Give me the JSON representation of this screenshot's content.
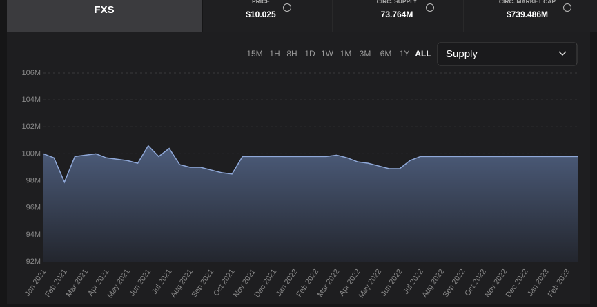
{
  "header": {
    "token": "FXS",
    "stats": [
      {
        "label": "PRICE",
        "value": "$10.025"
      },
      {
        "label": "CIRC. SUPPLY",
        "value": "73.764M"
      },
      {
        "label": "CIRC. MARKET CAP",
        "value": "$739.486M"
      }
    ]
  },
  "controls": {
    "time_ranges": [
      "15M",
      "1H",
      "8H",
      "1D",
      "1W",
      "1M",
      "3M",
      "6M",
      "1Y",
      "ALL"
    ],
    "selected_range": "ALL",
    "metric": "Supply"
  },
  "chart_data": {
    "type": "area",
    "color": "#8fa8d8",
    "categories": [
      "Jan 2021",
      null,
      "Feb 2021",
      null,
      "Mar 2021",
      null,
      "Apr 2021",
      null,
      "May 2021",
      null,
      "Jun 2021",
      null,
      "Jul 2021",
      null,
      "Aug 2021",
      null,
      "Sep 2021",
      null,
      "Oct 2021",
      null,
      "Nov 2021",
      null,
      "Dec 2021",
      null,
      "Jan 2022",
      null,
      "Feb 2022",
      null,
      "Mar 2022",
      null,
      "Apr 2022",
      null,
      "May 2022",
      null,
      "Jun 2022",
      null,
      "Jul 2022",
      null,
      "Aug 2022",
      null,
      "Sep 2022",
      null,
      "Oct 2022",
      null,
      "Nov 2022",
      null,
      "Dec 2022",
      null,
      "Jan 2023",
      null,
      "Feb 2023",
      null
    ],
    "values": [
      100.0,
      99.7,
      97.9,
      99.8,
      99.9,
      100.0,
      99.7,
      99.6,
      99.5,
      99.3,
      100.6,
      99.8,
      100.4,
      99.2,
      99.0,
      99.0,
      98.8,
      98.6,
      98.5,
      99.8,
      99.8,
      99.8,
      99.8,
      99.8,
      99.8,
      99.8,
      99.8,
      99.8,
      99.9,
      99.7,
      99.4,
      99.3,
      99.1,
      98.9,
      98.9,
      99.5,
      99.8,
      99.8,
      99.8,
      99.8,
      99.8,
      99.8,
      99.8,
      99.8,
      99.8,
      99.8,
      99.8,
      99.8,
      99.8,
      99.8,
      99.8,
      99.8
    ],
    "ylim": [
      92,
      106
    ],
    "yticks": [
      {
        "value": 92,
        "label": "92M"
      },
      {
        "value": 94,
        "label": "94M"
      },
      {
        "value": 96,
        "label": "96M"
      },
      {
        "value": 98,
        "label": "98M"
      },
      {
        "value": 100,
        "label": "100M"
      },
      {
        "value": 102,
        "label": "102M"
      },
      {
        "value": 104,
        "label": "104M"
      },
      {
        "value": 106,
        "label": "106M"
      }
    ],
    "grid": true
  }
}
